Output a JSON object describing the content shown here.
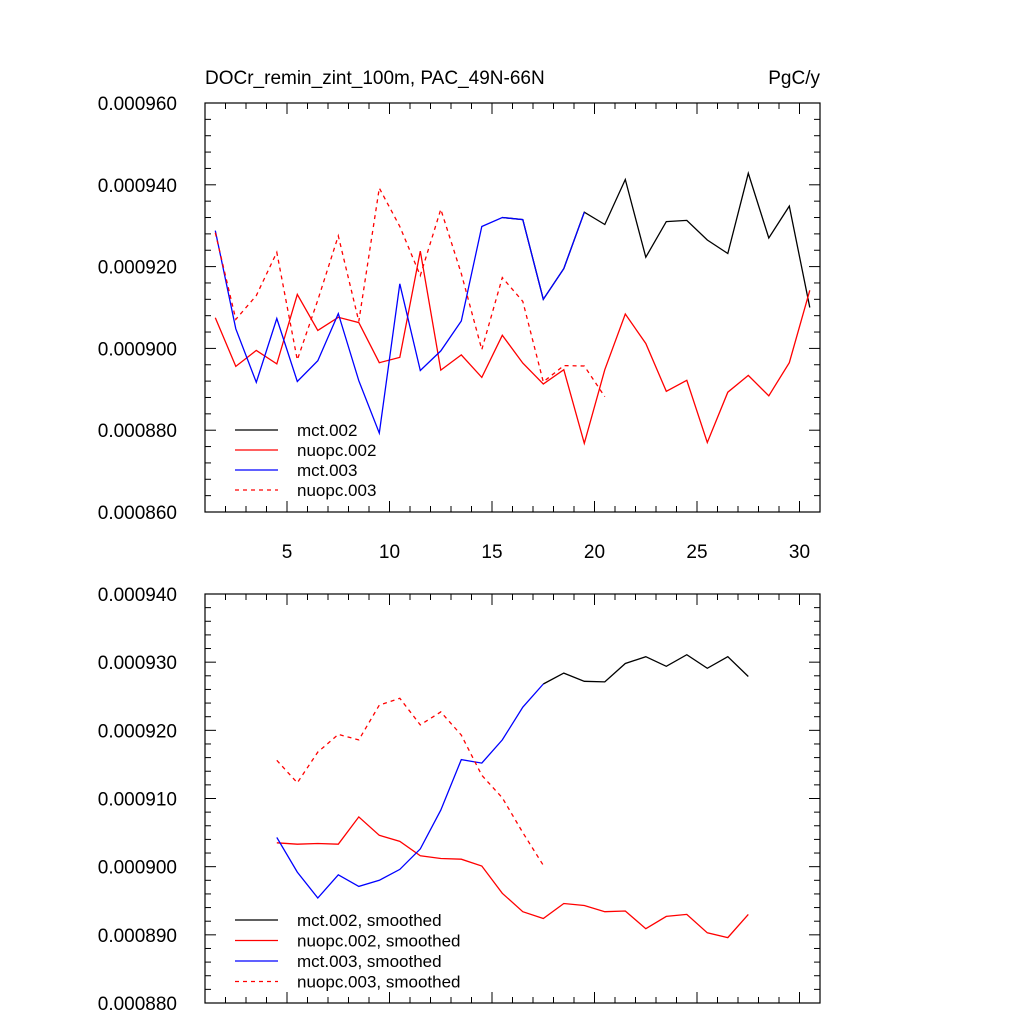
{
  "chart_data": [
    {
      "type": "line",
      "title": "DOCr_remin_zint_100m, PAC_49N-66N",
      "units": "PgC/y",
      "xlabel": "",
      "ylabel": "",
      "xlim": [
        1,
        31
      ],
      "ylim": [
        0.00086,
        0.00096
      ],
      "x_ticks": [
        5,
        10,
        15,
        20,
        25,
        30
      ],
      "y_ticks": [
        0.00086,
        0.00088,
        0.0009,
        0.00092,
        0.00094,
        0.00096
      ],
      "y_tick_labels": [
        "0.000860",
        "0.000880",
        "0.000900",
        "0.000920",
        "0.000940",
        "0.000960"
      ],
      "legend_position": "bottom-left",
      "series": [
        {
          "name": "mct.002",
          "color": "#000000",
          "dash": "solid",
          "x": [
            15.5,
            16.5,
            17.5,
            18.5,
            19.5,
            20.5,
            21.5,
            22.5,
            23.5,
            24.5,
            25.5,
            26.5,
            27.5,
            28.5,
            29.5,
            30.5
          ],
          "y": [
            0.000932,
            0.0009315,
            0.000912,
            0.0009195,
            0.0009333,
            0.0009303,
            0.0009413,
            0.0009223,
            0.000931,
            0.0009313,
            0.0009265,
            0.0009232,
            0.0009428,
            0.000927,
            0.0009348,
            0.00091
          ]
        },
        {
          "name": "nuopc.002",
          "color": "#ff0000",
          "dash": "solid",
          "x": [
            1.5,
            2.5,
            3.5,
            4.5,
            5.5,
            6.5,
            7.5,
            8.5,
            9.5,
            10.5,
            11.5,
            12.5,
            13.5,
            14.5,
            15.5,
            16.5,
            17.5,
            18.5,
            19.5,
            20.5,
            21.5,
            22.5,
            23.5,
            24.5,
            25.5,
            26.5,
            27.5,
            28.5,
            29.5,
            30.5
          ],
          "y": [
            0.0009075,
            0.0008956,
            0.0008995,
            0.0008962,
            0.0009132,
            0.0009044,
            0.0009076,
            0.0009063,
            0.0008965,
            0.0008978,
            0.0009238,
            0.0008947,
            0.0008984,
            0.0008929,
            0.0009032,
            0.0008964,
            0.0008913,
            0.0008948,
            0.0008768,
            0.0008948,
            0.0009084,
            0.0009012,
            0.0008895,
            0.0008922,
            0.000877,
            0.0008893,
            0.0008934,
            0.0008884,
            0.0008965,
            0.0009142
          ]
        },
        {
          "name": "mct.003",
          "color": "#0000ff",
          "dash": "solid",
          "x": [
            1.5,
            2.5,
            3.5,
            4.5,
            5.5,
            6.5,
            7.5,
            8.5,
            9.5,
            10.5,
            11.5,
            12.5,
            13.5,
            14.5,
            15.5,
            16.5,
            17.5,
            18.5,
            19.5
          ],
          "y": [
            0.0009288,
            0.0009048,
            0.0008917,
            0.0009073,
            0.0008919,
            0.000897,
            0.0009085,
            0.0008921,
            0.0008793,
            0.0009158,
            0.0008946,
            0.0008994,
            0.0009067,
            0.0009298,
            0.000932,
            0.0009315,
            0.000912,
            0.0009195,
            0.0009333
          ]
        },
        {
          "name": "nuopc.003",
          "color": "#ff0000",
          "dash": "dashed",
          "x": [
            1.5,
            2.5,
            3.5,
            4.5,
            5.5,
            6.5,
            7.5,
            8.5,
            9.5,
            10.5,
            11.5,
            12.5,
            13.5,
            14.5,
            15.5,
            16.5,
            17.5,
            18.5,
            19.5,
            20.5
          ],
          "y": [
            0.0009283,
            0.0009071,
            0.0009129,
            0.0009235,
            0.0008972,
            0.0009118,
            0.0009275,
            0.0009066,
            0.0009392,
            0.0009298,
            0.0009178,
            0.000934,
            0.0009183,
            0.0008997,
            0.0009173,
            0.0009115,
            0.0008918,
            0.0008958,
            0.0008957,
            0.0008882
          ]
        }
      ]
    },
    {
      "type": "line",
      "title": "",
      "xlabel": "",
      "ylabel": "",
      "xlim": [
        1,
        31
      ],
      "ylim": [
        0.00088,
        0.00094
      ],
      "x_ticks": [
        5,
        10,
        15,
        20,
        25,
        30
      ],
      "y_ticks": [
        0.00088,
        0.00089,
        0.0009,
        0.00091,
        0.00092,
        0.00093,
        0.00094
      ],
      "y_tick_labels": [
        "0.000880",
        "0.000890",
        "0.000900",
        "0.000910",
        "0.000920",
        "0.000930",
        "0.000940"
      ],
      "legend_position": "bottom-left",
      "series": [
        {
          "name": "mct.002, smoothed",
          "color": "#000000",
          "dash": "solid",
          "x": [
            17.5,
            18.5,
            19.5,
            20.5,
            21.5,
            22.5,
            23.5,
            24.5,
            25.5,
            26.5,
            27.5
          ],
          "y": [
            0.0009268,
            0.0009284,
            0.0009272,
            0.0009271,
            0.0009298,
            0.0009308,
            0.0009294,
            0.0009311,
            0.0009291,
            0.0009308,
            0.0009279
          ]
        },
        {
          "name": "nuopc.002, smoothed",
          "color": "#ff0000",
          "dash": "solid",
          "x": [
            4.5,
            5.5,
            6.5,
            7.5,
            8.5,
            9.5,
            10.5,
            11.5,
            12.5,
            13.5,
            14.5,
            15.5,
            16.5,
            17.5,
            18.5,
            19.5,
            20.5,
            21.5,
            22.5,
            23.5,
            24.5,
            25.5,
            26.5,
            27.5
          ],
          "y": [
            0.0009035,
            0.0009033,
            0.0009034,
            0.0009033,
            0.0009073,
            0.0009046,
            0.0009037,
            0.0009016,
            0.0009012,
            0.0009011,
            0.0009001,
            0.0008961,
            0.0008934,
            0.0008924,
            0.0008946,
            0.0008943,
            0.0008934,
            0.0008935,
            0.0008909,
            0.0008927,
            0.000893,
            0.0008903,
            0.0008896,
            0.000893
          ]
        },
        {
          "name": "mct.003, smoothed",
          "color": "#0000ff",
          "dash": "solid",
          "x": [
            4.5,
            5.5,
            6.5,
            7.5,
            8.5,
            9.5,
            10.5,
            11.5,
            12.5,
            13.5,
            14.5,
            15.5,
            16.5,
            17.5
          ],
          "y": [
            0.0009043,
            0.0008992,
            0.0008954,
            0.0008988,
            0.0008971,
            0.000898,
            0.0008996,
            0.0009026,
            0.0009083,
            0.0009157,
            0.0009152,
            0.0009186,
            0.0009234,
            0.0009268
          ]
        },
        {
          "name": "nuopc.003, smoothed",
          "color": "#ff0000",
          "dash": "dashed",
          "x": [
            4.5,
            5.5,
            6.5,
            7.5,
            8.5,
            9.5,
            10.5,
            11.5,
            12.5,
            13.5,
            14.5,
            15.5,
            16.5,
            17.5
          ],
          "y": [
            0.0009156,
            0.0009123,
            0.0009168,
            0.0009194,
            0.0009186,
            0.0009237,
            0.0009247,
            0.0009208,
            0.0009227,
            0.0009193,
            0.0009134,
            0.0009101,
            0.000905,
            0.0009002
          ]
        }
      ]
    }
  ]
}
